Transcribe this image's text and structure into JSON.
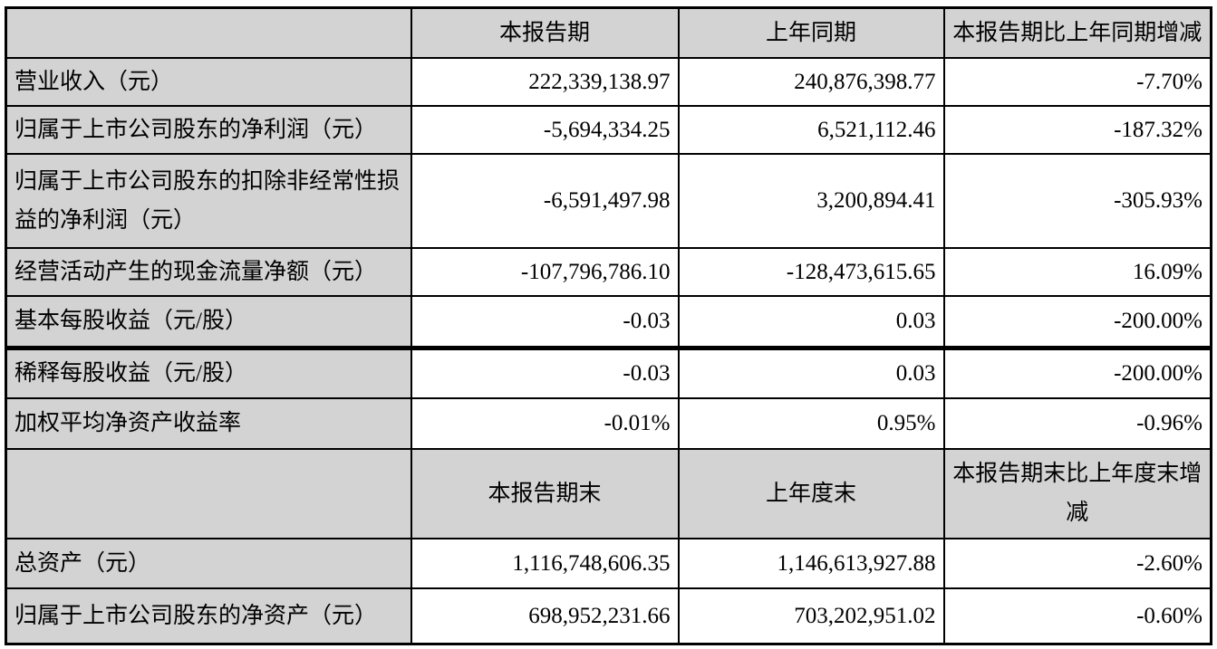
{
  "colors": {
    "header_bg": "#d3d3d3",
    "label_bg": "#d3d3d3",
    "cell_bg": "#ffffff",
    "border": "#000000",
    "text": "#000000"
  },
  "table": {
    "header1": [
      "",
      "本报告期",
      "上年同期",
      "本报告期比上年同期增减"
    ],
    "rows1": [
      {
        "label": "营业收入（元）",
        "current": "222,339,138.97",
        "prior": "240,876,398.77",
        "change": "-7.70%"
      },
      {
        "label": "归属于上市公司股东的净利润（元）",
        "current": "-5,694,334.25",
        "prior": "6,521,112.46",
        "change": "-187.32%"
      },
      {
        "label": "归属于上市公司股东的扣除非经常性损益的净利润（元）",
        "current": "-6,591,497.98",
        "prior": "3,200,894.41",
        "change": "-305.93%"
      },
      {
        "label": "经营活动产生的现金流量净额（元）",
        "current": "-107,796,786.10",
        "prior": "-128,473,615.65",
        "change": "16.09%"
      },
      {
        "label": "基本每股收益（元/股）",
        "current": "-0.03",
        "prior": "0.03",
        "change": "-200.00%"
      },
      {
        "label": "稀释每股收益（元/股）",
        "current": "-0.03",
        "prior": "0.03",
        "change": "-200.00%"
      },
      {
        "label": "加权平均净资产收益率",
        "current": "-0.01%",
        "prior": "0.95%",
        "change": "-0.96%"
      }
    ],
    "header2": [
      "",
      "本报告期末",
      "上年度末",
      "本报告期末比上年度末增减"
    ],
    "rows2": [
      {
        "label": "总资产（元）",
        "current": "1,116,748,606.35",
        "prior": "1,146,613,927.88",
        "change": "-2.60%"
      },
      {
        "label": "归属于上市公司股东的净资产（元）",
        "current": "698,952,231.66",
        "prior": "703,202,951.02",
        "change": "-0.60%"
      }
    ]
  }
}
